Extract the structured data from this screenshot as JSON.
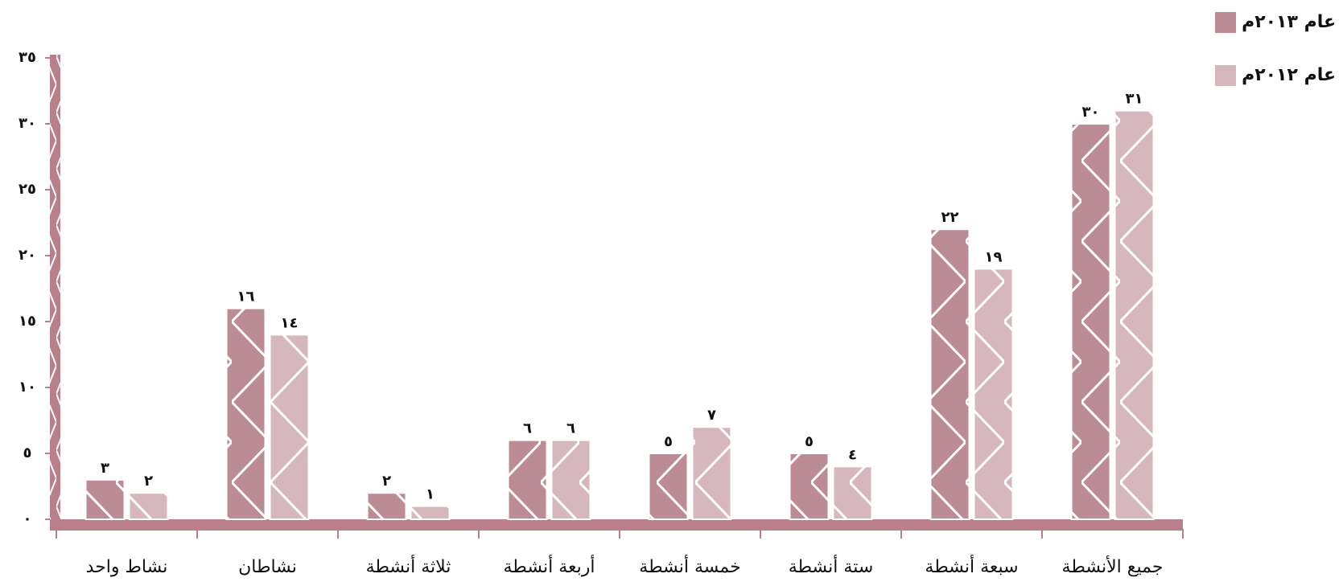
{
  "chart_data": {
    "type": "bar",
    "categories": [
      "نشاط واحد",
      "نشاطان",
      "ثلاثة أنشطة",
      "أربعة أنشطة",
      "خمسة أنشطة",
      "ستة أنشطة",
      "سبعة أنشطة",
      "جميع الأنشطة"
    ],
    "series": [
      {
        "name": "عام ٢٠١٣م",
        "color": "#bc8c96",
        "values": [
          3,
          16,
          2,
          6,
          5,
          5,
          22,
          30
        ],
        "value_labels": [
          "٣",
          "١٦",
          "٢",
          "٦",
          "٥",
          "٥",
          "٢٢",
          "٣٠"
        ]
      },
      {
        "name": "عام ٢٠١٢م",
        "color": "#d5b7bd",
        "values": [
          2,
          14,
          1,
          6,
          7,
          4,
          19,
          31
        ],
        "value_labels": [
          "٢",
          "١٤",
          "١",
          "٦",
          "٧",
          "٤",
          "١٩",
          "٣١"
        ]
      }
    ],
    "ylim": [
      0,
      35
    ],
    "yticks": [
      {
        "value": 0,
        "label": "٠"
      },
      {
        "value": 5,
        "label": "٥"
      },
      {
        "value": 10,
        "label": "١٠"
      },
      {
        "value": 15,
        "label": "١٥"
      },
      {
        "value": 20,
        "label": "٢٠"
      },
      {
        "value": 25,
        "label": "٢٥"
      },
      {
        "value": 30,
        "label": "٣٠"
      },
      {
        "value": 35,
        "label": "٣٥"
      }
    ],
    "legend": "top-right"
  }
}
